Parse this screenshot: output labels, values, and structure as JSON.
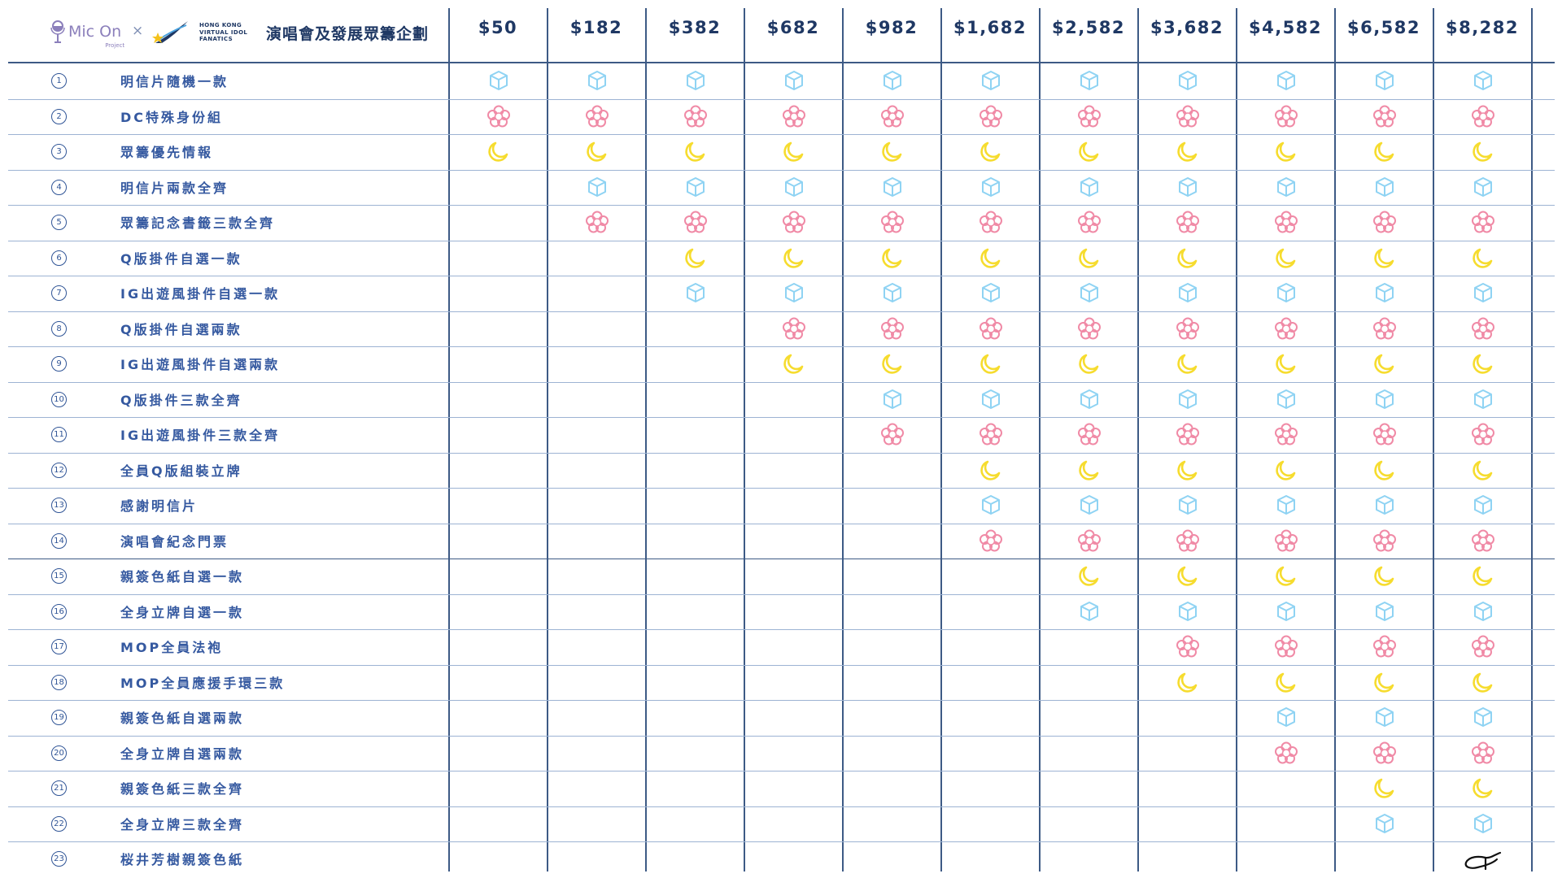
{
  "header": {
    "logo_text": "Mic On",
    "logo_subtext": "Project",
    "times": "×",
    "partner_lines": [
      "HONG KONG",
      "VIRTUAL IDOL",
      "FANATICS"
    ],
    "title": "演唱會及發展眾籌企劃"
  },
  "tiers": [
    "$50",
    "$182",
    "$382",
    "$682",
    "$982",
    "$1,682",
    "$2,582",
    "$3,682",
    "$4,582",
    "$6,582",
    "$8,282"
  ],
  "icon_cycle": [
    "cube-icon",
    "flower-icon",
    "moon-icon"
  ],
  "colors": {
    "cube": "#8fd3f3",
    "flower": "#f08aa6",
    "moon": "#f6dc2e",
    "line": "#3d5a85",
    "text": "#3559a0"
  },
  "rewards": [
    {
      "num": "1",
      "label": "明信片隨機一款",
      "from_tier": 0
    },
    {
      "num": "2",
      "label": "DC特殊身份組",
      "from_tier": 0
    },
    {
      "num": "3",
      "label": "眾籌優先情報",
      "from_tier": 0
    },
    {
      "num": "4",
      "label": "明信片兩款全齊",
      "from_tier": 1
    },
    {
      "num": "5",
      "label": "眾籌記念書籤三款全齊",
      "from_tier": 1
    },
    {
      "num": "6",
      "label": "Q版掛件自選一款",
      "from_tier": 2
    },
    {
      "num": "7",
      "label": "IG出遊風掛件自選一款",
      "from_tier": 2
    },
    {
      "num": "8",
      "label": "Q版掛件自選兩款",
      "from_tier": 3
    },
    {
      "num": "9",
      "label": "IG出遊風掛件自選兩款",
      "from_tier": 3
    },
    {
      "num": "10",
      "label": "Q版掛件三款全齊",
      "from_tier": 4
    },
    {
      "num": "11",
      "label": "IG出遊風掛件三款全齊",
      "from_tier": 4
    },
    {
      "num": "12",
      "label": "全員Q版組裝立牌",
      "from_tier": 5
    },
    {
      "num": "13",
      "label": "感謝明信片",
      "from_tier": 5
    },
    {
      "num": "14",
      "label": "演唱會紀念門票",
      "from_tier": 5
    },
    {
      "num": "15",
      "label": "親簽色紙自選一款",
      "from_tier": 6
    },
    {
      "num": "16",
      "label": "全身立牌自選一款",
      "from_tier": 6
    },
    {
      "num": "17",
      "label": "MOP全員法袍",
      "from_tier": 7
    },
    {
      "num": "18",
      "label": "MOP全員應援手環三款",
      "from_tier": 7
    },
    {
      "num": "19",
      "label": "親簽色紙自選兩款",
      "from_tier": 8
    },
    {
      "num": "20",
      "label": "全身立牌自選兩款",
      "from_tier": 8
    },
    {
      "num": "21",
      "label": "親簽色紙三款全齊",
      "from_tier": 9
    },
    {
      "num": "22",
      "label": "全身立牌三款全齊",
      "from_tier": 9
    },
    {
      "num": "23",
      "label": "桜井芳樹親簽色紙",
      "from_tier": 10,
      "mark": "signature-icon"
    }
  ]
}
